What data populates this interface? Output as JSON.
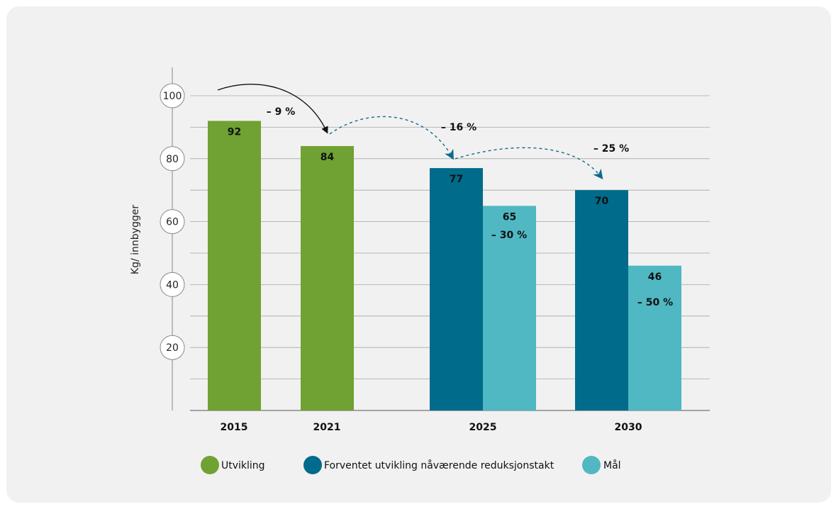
{
  "chart_data": {
    "type": "bar",
    "ylabel": "Kg/ innbygger",
    "ylim": [
      0,
      100
    ],
    "yticks": [
      20,
      40,
      60,
      80,
      100
    ],
    "grid": true,
    "categories": [
      "2015",
      "2021",
      "2025",
      "2030"
    ],
    "series": [
      {
        "name": "Utvikling",
        "color": "#6fa232",
        "values": [
          92,
          84,
          null,
          null
        ]
      },
      {
        "name": "Forventet utvikling nåværende reduksjonstakt",
        "color": "#006b8a",
        "values": [
          null,
          null,
          77,
          70
        ]
      },
      {
        "name": "Mål",
        "color": "#4fb8c3",
        "values": [
          null,
          null,
          65,
          46
        ]
      }
    ],
    "data_labels": {
      "Utvikling": [
        "92",
        "84",
        "",
        ""
      ],
      "Forventet utvikling nåværende reduksjonstakt": [
        "",
        "",
        "77",
        "70"
      ],
      "Mål": [
        "",
        "",
        "65",
        "46"
      ]
    },
    "annotations": [
      {
        "text": "– 9 %",
        "from": "2015",
        "to": "2021",
        "style": "solid"
      },
      {
        "text": "– 16 %",
        "from": "2021",
        "to": "2025",
        "style": "dashed"
      },
      {
        "text": "– 25 %",
        "from": "2025",
        "to": "2030",
        "style": "dashed"
      },
      {
        "text": "– 30 %",
        "category": "2025",
        "series": "Mål"
      },
      {
        "text": "– 50 %",
        "category": "2030",
        "series": "Mål"
      }
    ],
    "legend": {
      "placement": "bottom"
    }
  }
}
